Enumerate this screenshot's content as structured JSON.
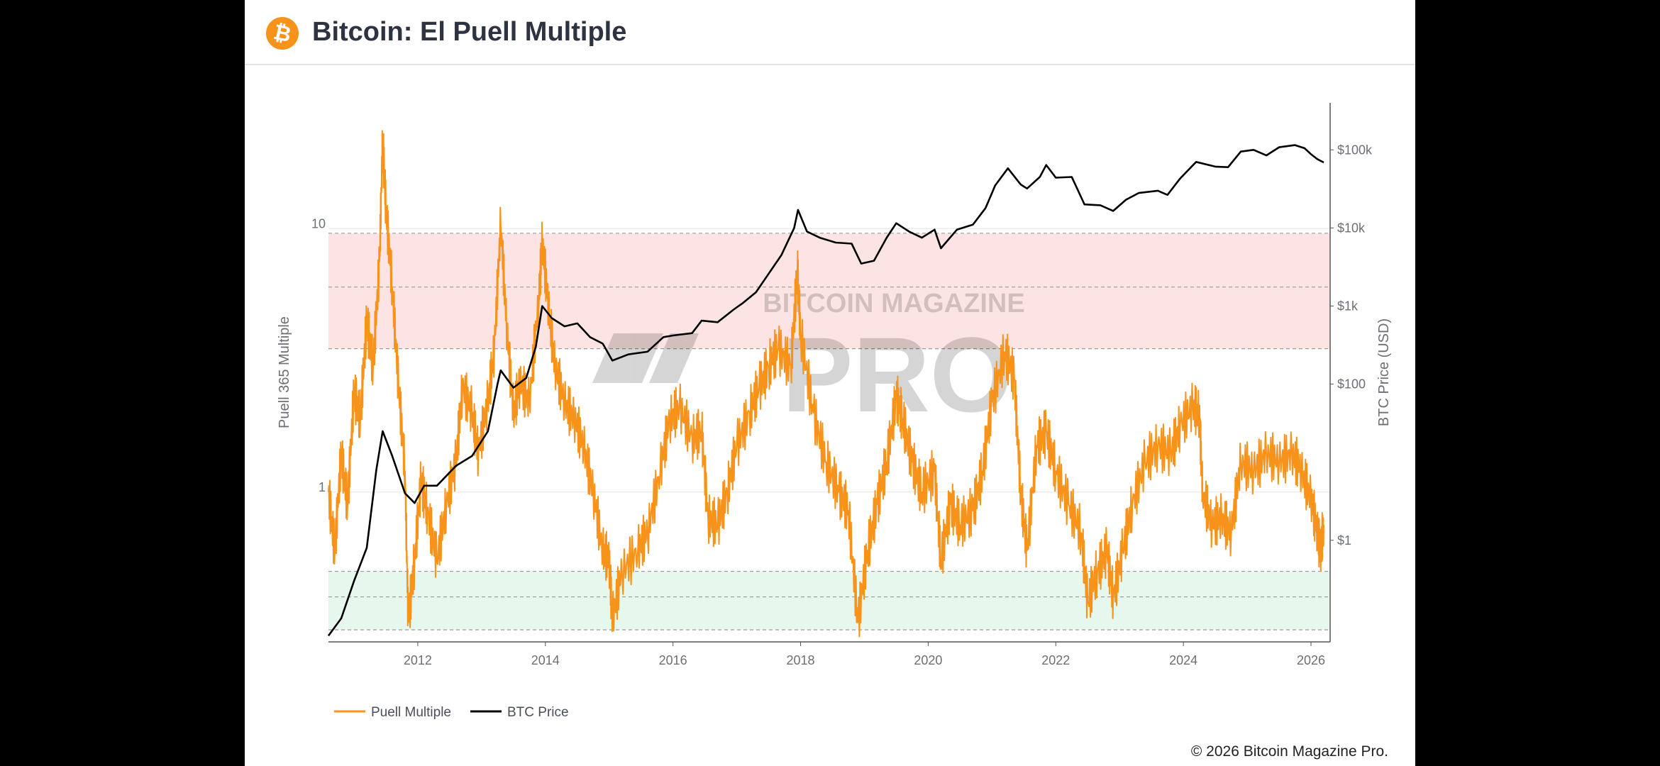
{
  "header": {
    "title": "Bitcoin: El Puell Multiple",
    "logo_glyph": "₿",
    "logo_icon": "bitcoin-icon"
  },
  "footer": {
    "copyright": "© 2026 Bitcoin Magazine Pro."
  },
  "watermark": {
    "line1": "BITCOIN MAGAZINE",
    "line2": "PRO"
  },
  "colors": {
    "puell": "#f7931a",
    "price": "#000000",
    "red_band": "#fde4e4",
    "green_band": "#e6f7ee"
  },
  "chart_data": {
    "type": "line",
    "x_ticks": [
      "2012",
      "2014",
      "2016",
      "2018",
      "2020",
      "2022",
      "2024",
      "2026"
    ],
    "xlim": [
      "2010-08",
      "2026-04"
    ],
    "y_left": {
      "label": "Puell 365 Multiple",
      "scale": "log",
      "range": [
        0.27,
        30
      ],
      "ticks": [
        "10",
        "1"
      ]
    },
    "y_right": {
      "label": "BTC Price (USD)",
      "scale": "log",
      "range": [
        0.05,
        400000
      ],
      "ticks": [
        "$100k",
        "$10k",
        "$1k",
        "$100",
        "$1"
      ]
    },
    "bands": [
      {
        "name": "red",
        "from": 3.5,
        "to": 9.6
      },
      {
        "name": "green",
        "from": 0.3,
        "to": 0.5
      }
    ],
    "band_lines": [
      9.6,
      6.0,
      3.5,
      0.5,
      0.4,
      0.3
    ],
    "legend": [
      "Puell Multiple",
      "BTC Price"
    ],
    "series": [
      {
        "name": "Puell Multiple",
        "points": [
          [
            2010.6,
            1.0
          ],
          [
            2010.7,
            0.6
          ],
          [
            2010.8,
            1.4
          ],
          [
            2010.9,
            0.9
          ],
          [
            2011.0,
            2.4
          ],
          [
            2011.1,
            1.9
          ],
          [
            2011.2,
            4.5
          ],
          [
            2011.3,
            3.0
          ],
          [
            2011.4,
            7.5
          ],
          [
            2011.45,
            22.0
          ],
          [
            2011.5,
            12.0
          ],
          [
            2011.6,
            6.0
          ],
          [
            2011.7,
            2.5
          ],
          [
            2011.8,
            1.2
          ],
          [
            2011.85,
            0.32
          ],
          [
            2011.95,
            0.55
          ],
          [
            2012.05,
            1.1
          ],
          [
            2012.15,
            0.85
          ],
          [
            2012.3,
            0.55
          ],
          [
            2012.45,
            0.9
          ],
          [
            2012.6,
            1.3
          ],
          [
            2012.7,
            2.5
          ],
          [
            2012.85,
            2.0
          ],
          [
            2012.95,
            1.4
          ],
          [
            2013.1,
            2.2
          ],
          [
            2013.2,
            3.5
          ],
          [
            2013.3,
            10.5
          ],
          [
            2013.4,
            4.0
          ],
          [
            2013.5,
            2.0
          ],
          [
            2013.6,
            2.6
          ],
          [
            2013.75,
            2.2
          ],
          [
            2013.9,
            5.5
          ],
          [
            2013.95,
            9.0
          ],
          [
            2014.05,
            5.0
          ],
          [
            2014.15,
            3.0
          ],
          [
            2014.3,
            2.2
          ],
          [
            2014.45,
            1.9
          ],
          [
            2014.6,
            1.5
          ],
          [
            2014.75,
            1.0
          ],
          [
            2014.9,
            0.6
          ],
          [
            2015.0,
            0.55
          ],
          [
            2015.05,
            0.33
          ],
          [
            2015.2,
            0.5
          ],
          [
            2015.45,
            0.6
          ],
          [
            2015.6,
            0.7
          ],
          [
            2015.8,
            1.2
          ],
          [
            2015.95,
            1.9
          ],
          [
            2016.1,
            2.1
          ],
          [
            2016.3,
            1.6
          ],
          [
            2016.45,
            1.7
          ],
          [
            2016.55,
            0.8
          ],
          [
            2016.7,
            0.75
          ],
          [
            2016.85,
            1.0
          ],
          [
            2017.0,
            1.5
          ],
          [
            2017.2,
            2.0
          ],
          [
            2017.35,
            2.5
          ],
          [
            2017.5,
            3.0
          ],
          [
            2017.65,
            3.5
          ],
          [
            2017.85,
            3.0
          ],
          [
            2017.95,
            7.0
          ],
          [
            2018.0,
            4.0
          ],
          [
            2018.2,
            2.0
          ],
          [
            2018.4,
            1.3
          ],
          [
            2018.6,
            1.0
          ],
          [
            2018.75,
            0.85
          ],
          [
            2018.9,
            0.32
          ],
          [
            2019.05,
            0.6
          ],
          [
            2019.2,
            0.9
          ],
          [
            2019.35,
            1.3
          ],
          [
            2019.5,
            2.3
          ],
          [
            2019.6,
            1.9
          ],
          [
            2019.75,
            1.3
          ],
          [
            2019.9,
            1.0
          ],
          [
            2020.1,
            1.2
          ],
          [
            2020.2,
            0.55
          ],
          [
            2020.35,
            0.9
          ],
          [
            2020.5,
            0.75
          ],
          [
            2020.7,
            0.85
          ],
          [
            2020.85,
            1.2
          ],
          [
            2021.0,
            2.2
          ],
          [
            2021.2,
            3.4
          ],
          [
            2021.35,
            2.7
          ],
          [
            2021.45,
            1.0
          ],
          [
            2021.55,
            0.6
          ],
          [
            2021.7,
            1.5
          ],
          [
            2021.85,
            1.7
          ],
          [
            2022.0,
            1.2
          ],
          [
            2022.2,
            0.9
          ],
          [
            2022.4,
            0.7
          ],
          [
            2022.5,
            0.38
          ],
          [
            2022.65,
            0.5
          ],
          [
            2022.8,
            0.6
          ],
          [
            2022.9,
            0.4
          ],
          [
            2023.05,
            0.6
          ],
          [
            2023.2,
            0.9
          ],
          [
            2023.4,
            1.3
          ],
          [
            2023.6,
            1.5
          ],
          [
            2023.8,
            1.4
          ],
          [
            2023.95,
            1.8
          ],
          [
            2024.15,
            2.1
          ],
          [
            2024.25,
            2.0
          ],
          [
            2024.3,
            1.0
          ],
          [
            2024.45,
            0.75
          ],
          [
            2024.6,
            0.8
          ],
          [
            2024.75,
            0.7
          ],
          [
            2024.9,
            1.3
          ],
          [
            2025.1,
            1.2
          ],
          [
            2025.3,
            1.4
          ],
          [
            2025.5,
            1.3
          ],
          [
            2025.7,
            1.4
          ],
          [
            2025.85,
            1.2
          ],
          [
            2026.0,
            0.95
          ],
          [
            2026.1,
            0.7
          ],
          [
            2026.15,
            0.6
          ],
          [
            2026.2,
            0.75
          ]
        ]
      },
      {
        "name": "BTC Price",
        "points": [
          [
            2010.6,
            0.06
          ],
          [
            2010.8,
            0.1
          ],
          [
            2011.0,
            0.3
          ],
          [
            2011.2,
            0.8
          ],
          [
            2011.35,
            8
          ],
          [
            2011.45,
            25
          ],
          [
            2011.6,
            12
          ],
          [
            2011.8,
            4
          ],
          [
            2011.95,
            3
          ],
          [
            2012.1,
            5
          ],
          [
            2012.3,
            5
          ],
          [
            2012.6,
            9
          ],
          [
            2012.85,
            12
          ],
          [
            2013.1,
            25
          ],
          [
            2013.25,
            100
          ],
          [
            2013.3,
            150
          ],
          [
            2013.5,
            90
          ],
          [
            2013.7,
            120
          ],
          [
            2013.85,
            300
          ],
          [
            2013.95,
            1000
          ],
          [
            2014.1,
            700
          ],
          [
            2014.3,
            550
          ],
          [
            2014.5,
            600
          ],
          [
            2014.7,
            400
          ],
          [
            2014.9,
            330
          ],
          [
            2015.05,
            200
          ],
          [
            2015.3,
            240
          ],
          [
            2015.6,
            260
          ],
          [
            2015.85,
            400
          ],
          [
            2016.0,
            420
          ],
          [
            2016.3,
            450
          ],
          [
            2016.45,
            650
          ],
          [
            2016.7,
            620
          ],
          [
            2016.95,
            900
          ],
          [
            2017.1,
            1100
          ],
          [
            2017.3,
            1500
          ],
          [
            2017.5,
            2600
          ],
          [
            2017.7,
            4500
          ],
          [
            2017.9,
            10000
          ],
          [
            2017.96,
            17000
          ],
          [
            2018.1,
            9000
          ],
          [
            2018.3,
            7500
          ],
          [
            2018.55,
            6500
          ],
          [
            2018.8,
            6300
          ],
          [
            2018.95,
            3500
          ],
          [
            2019.15,
            3800
          ],
          [
            2019.35,
            7500
          ],
          [
            2019.5,
            11500
          ],
          [
            2019.7,
            9000
          ],
          [
            2019.9,
            7500
          ],
          [
            2020.1,
            9500
          ],
          [
            2020.2,
            5500
          ],
          [
            2020.45,
            9500
          ],
          [
            2020.7,
            11000
          ],
          [
            2020.9,
            18000
          ],
          [
            2021.05,
            35000
          ],
          [
            2021.25,
            58000
          ],
          [
            2021.45,
            36000
          ],
          [
            2021.55,
            32000
          ],
          [
            2021.75,
            45000
          ],
          [
            2021.85,
            64000
          ],
          [
            2022.0,
            44000
          ],
          [
            2022.25,
            45000
          ],
          [
            2022.45,
            20000
          ],
          [
            2022.7,
            19500
          ],
          [
            2022.9,
            16500
          ],
          [
            2023.1,
            23000
          ],
          [
            2023.3,
            28000
          ],
          [
            2023.6,
            30000
          ],
          [
            2023.75,
            26500
          ],
          [
            2023.95,
            43000
          ],
          [
            2024.2,
            70000
          ],
          [
            2024.5,
            61000
          ],
          [
            2024.7,
            60000
          ],
          [
            2024.9,
            95000
          ],
          [
            2025.1,
            100000
          ],
          [
            2025.3,
            85000
          ],
          [
            2025.5,
            108000
          ],
          [
            2025.75,
            115000
          ],
          [
            2025.9,
            105000
          ],
          [
            2026.0,
            88000
          ],
          [
            2026.1,
            76000
          ],
          [
            2026.2,
            69000
          ]
        ]
      }
    ]
  }
}
